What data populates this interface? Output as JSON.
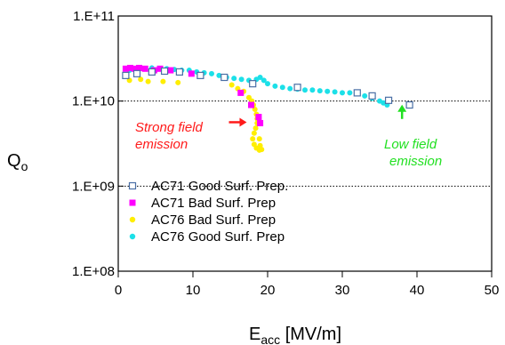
{
  "chart_data": {
    "type": "scatter",
    "title": "",
    "xlabel": {
      "main": "E",
      "sub": "acc",
      "rest": " [MV/m]"
    },
    "ylabel": {
      "main": "Q",
      "sub": "o"
    },
    "xlim": [
      0,
      50
    ],
    "ylim": [
      100000000.0,
      100000000000.0
    ],
    "yscale": "log",
    "x_ticks": [
      "0",
      "10",
      "20",
      "30",
      "40",
      "50"
    ],
    "y_ticks": [
      "1.E+08",
      "1.E+09",
      "1.E+10",
      "1.E+11"
    ],
    "grid": "dotted horizontal lines at 1.E+09 and 1.E+10",
    "legend_position": "bottom-left",
    "series": [
      {
        "name": "AC71 Good Surf. Prep.",
        "marker": "open-square",
        "color": "#4a6fa5",
        "points": [
          [
            1.0,
            20000000000.0
          ],
          [
            2.5,
            21000000000.0
          ],
          [
            4.5,
            22000000000.0
          ],
          [
            6.2,
            22500000000.0
          ],
          [
            8.2,
            22000000000.0
          ],
          [
            11.0,
            20000000000.0
          ],
          [
            14.2,
            19000000000.0
          ],
          [
            18.0,
            16000000000.0
          ],
          [
            24.0,
            14500000000.0
          ],
          [
            32.0,
            12500000000.0
          ],
          [
            34.0,
            11500000000.0
          ],
          [
            36.2,
            10200000000.0
          ],
          [
            39.0,
            9000000000.0
          ]
        ]
      },
      {
        "name": "AC71 Bad Surf. Prep",
        "marker": "square",
        "color": "#ff00ff",
        "points": [
          [
            1.0,
            24000000000.0
          ],
          [
            1.6,
            24500000000.0
          ],
          [
            2.2,
            24000000000.0
          ],
          [
            2.8,
            24500000000.0
          ],
          [
            3.6,
            24000000000.0
          ],
          [
            4.8,
            23000000000.0
          ],
          [
            5.6,
            24000000000.0
          ],
          [
            7.0,
            23000000000.0
          ],
          [
            9.8,
            21000000000.0
          ],
          [
            16.4,
            12500000000.0
          ],
          [
            17.8,
            9000000000.0
          ],
          [
            18.8,
            6500000000.0
          ],
          [
            19.0,
            5500000000.0
          ]
        ]
      },
      {
        "name": "AC76 Bad Surf. Prep",
        "marker": "circle",
        "color": "#ffee00",
        "points": [
          [
            1.5,
            17500000000.0
          ],
          [
            3.0,
            18000000000.0
          ],
          [
            4.0,
            17000000000.0
          ],
          [
            6.0,
            17000000000.0
          ],
          [
            8.0,
            16500000000.0
          ],
          [
            15.2,
            15500000000.0
          ],
          [
            16.0,
            14000000000.0
          ],
          [
            16.8,
            13000000000.0
          ],
          [
            17.5,
            11000000000.0
          ],
          [
            17.9,
            10000000000.0
          ],
          [
            18.1,
            9000000000.0
          ],
          [
            18.3,
            8000000000.0
          ],
          [
            18.5,
            7000000000.0
          ],
          [
            18.6,
            6200000000.0
          ],
          [
            18.6,
            5500000000.0
          ],
          [
            18.4,
            4800000000.0
          ],
          [
            18.2,
            4200000000.0
          ],
          [
            18.0,
            3600000000.0
          ],
          [
            18.2,
            3100000000.0
          ],
          [
            18.5,
            2800000000.0
          ],
          [
            18.9,
            2650000000.0
          ],
          [
            19.2,
            2700000000.0
          ],
          [
            19.0,
            3000000000.0
          ],
          [
            18.9,
            3600000000.0
          ]
        ]
      },
      {
        "name": "AC76 Good Surf. Prep",
        "marker": "circle",
        "color": "#1ce0e8",
        "points": [
          [
            1.5,
            23000000000.0
          ],
          [
            2.5,
            24000000000.0
          ],
          [
            3.5,
            24000000000.0
          ],
          [
            4.5,
            24500000000.0
          ],
          [
            5.5,
            24000000000.0
          ],
          [
            6.5,
            24000000000.0
          ],
          [
            7.5,
            23500000000.0
          ],
          [
            8.5,
            23000000000.0
          ],
          [
            9.5,
            23000000000.0
          ],
          [
            10.5,
            22000000000.0
          ],
          [
            11.5,
            21500000000.0
          ],
          [
            12.5,
            21000000000.0
          ],
          [
            13.5,
            20000000000.0
          ],
          [
            14.5,
            19000000000.0
          ],
          [
            15.5,
            18500000000.0
          ],
          [
            16.5,
            18000000000.0
          ],
          [
            17.5,
            17500000000.0
          ],
          [
            18.5,
            18000000000.0
          ],
          [
            19.0,
            19000000000.0
          ],
          [
            19.5,
            17500000000.0
          ],
          [
            20.0,
            16000000000.0
          ],
          [
            21.0,
            15000000000.0
          ],
          [
            22.0,
            14500000000.0
          ],
          [
            23.0,
            14000000000.0
          ],
          [
            24.0,
            13800000000.0
          ],
          [
            25.0,
            13500000000.0
          ],
          [
            26.0,
            13500000000.0
          ],
          [
            27.0,
            13200000000.0
          ],
          [
            28.0,
            13000000000.0
          ],
          [
            29.0,
            12800000000.0
          ],
          [
            30.0,
            12500000000.0
          ],
          [
            31.0,
            12500000000.0
          ],
          [
            32.0,
            12200000000.0
          ],
          [
            33.0,
            11500000000.0
          ],
          [
            34.0,
            10800000000.0
          ],
          [
            35.0,
            10000000000.0
          ],
          [
            35.5,
            9500000000.0
          ],
          [
            36.0,
            9000000000.0
          ]
        ]
      }
    ],
    "annotations": [
      {
        "lines": [
          "Strong field",
          "emission"
        ],
        "color": "#ff1a1a",
        "arrow": "right",
        "points_to": [
          17.2,
          5000000000.0
        ]
      },
      {
        "lines": [
          "Low field",
          "emission"
        ],
        "color": "#22e022",
        "arrow": "up",
        "points_to": [
          38.0,
          9500000000.0
        ]
      }
    ]
  }
}
